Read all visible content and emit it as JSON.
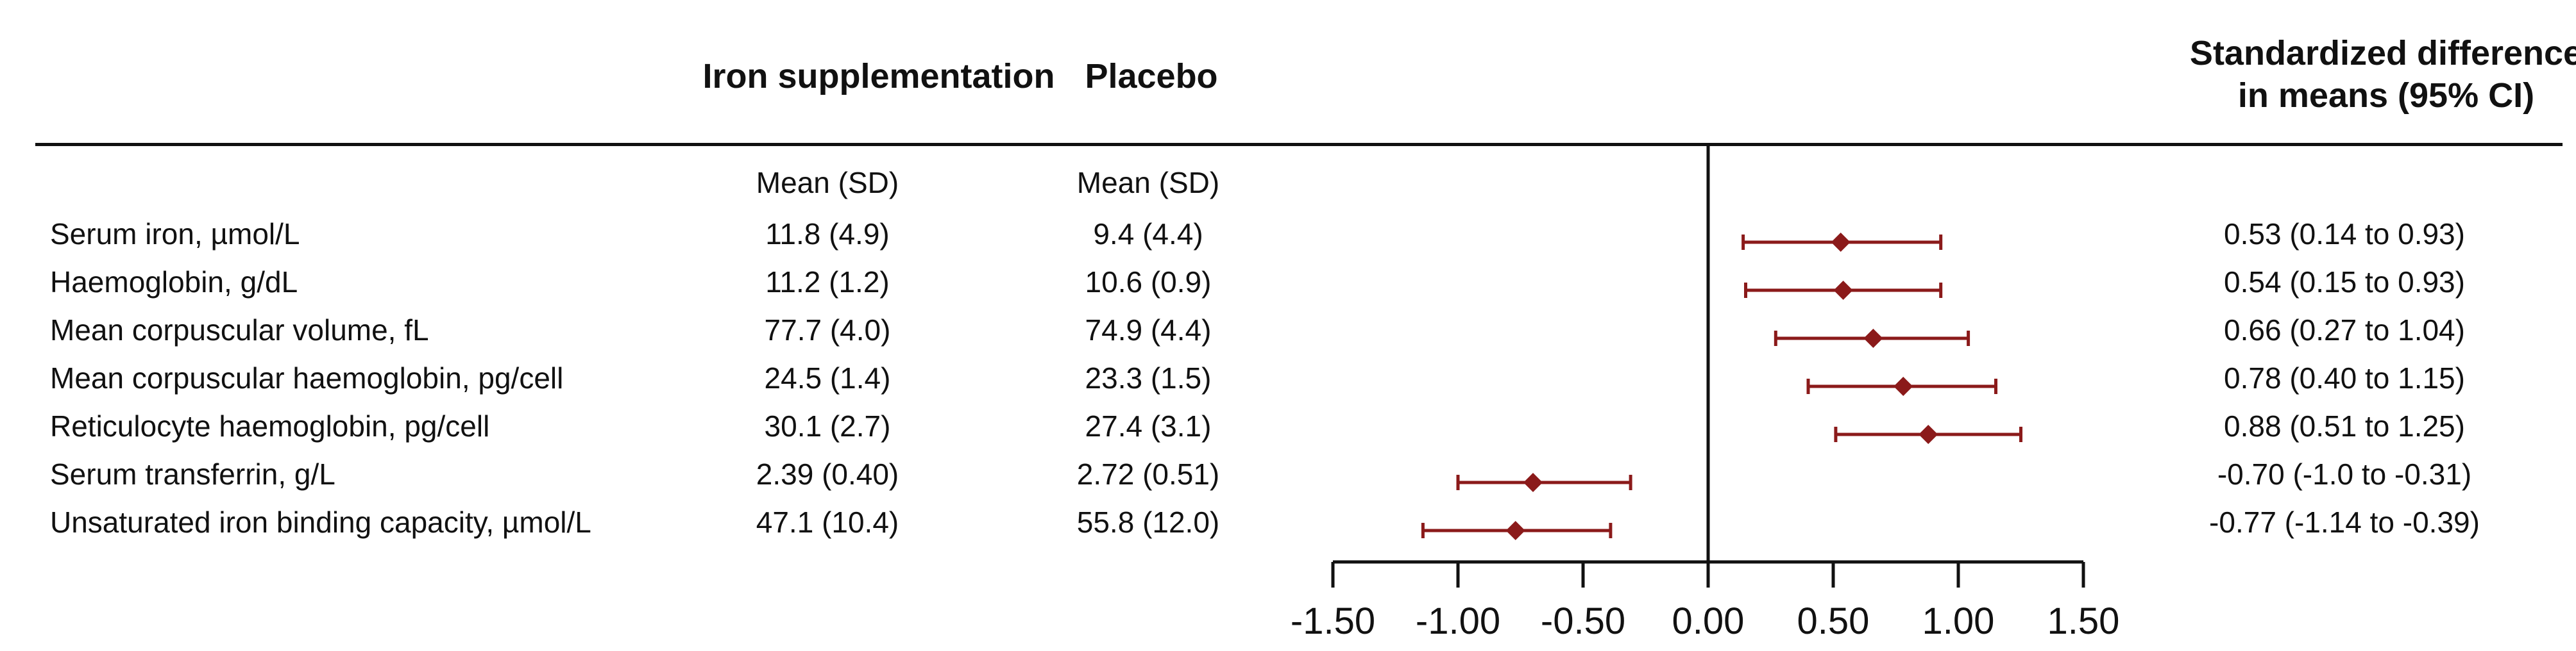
{
  "headers": {
    "iron": "Iron supplementation",
    "placebo": "Placebo",
    "smd_line1": "Standardized difference",
    "smd_line2": "in means (95% CI)"
  },
  "subheaders": {
    "iron": "Mean (SD)",
    "placebo": "Mean (SD)"
  },
  "rows": [
    {
      "label": "Serum iron, µmol/L",
      "iron": "11.8 (4.9)",
      "placebo": "9.4 (4.4)",
      "ci_text": "0.53 (0.14 to 0.93)"
    },
    {
      "label": "Haemoglobin, g/dL",
      "iron": "11.2 (1.2)",
      "placebo": "10.6 (0.9)",
      "ci_text": "0.54 (0.15 to 0.93)"
    },
    {
      "label": "Mean corpuscular volume, fL",
      "iron": "77.7 (4.0)",
      "placebo": "74.9 (4.4)",
      "ci_text": "0.66 (0.27 to 1.04)"
    },
    {
      "label": "Mean corpuscular haemoglobin, pg/cell",
      "iron": "24.5 (1.4)",
      "placebo": "23.3 (1.5)",
      "ci_text": "0.78 (0.40 to 1.15)"
    },
    {
      "label": "Reticulocyte haemoglobin, pg/cell",
      "iron": "30.1 (2.7)",
      "placebo": "27.4 (3.1)",
      "ci_text": "0.88 (0.51 to 1.25)"
    },
    {
      "label": "Serum transferrin, g/L",
      "iron": "2.39 (0.40)",
      "placebo": "2.72 (0.51)",
      "ci_text": "-0.70 (-1.0 to  -0.31)"
    },
    {
      "label": "Unsaturated iron binding capacity, µmol/L",
      "iron": "47.1 (10.4)",
      "placebo": "55.8 (12.0)",
      "ci_text": "-0.77 (-1.14 to  -0.39)"
    }
  ],
  "chart_data": {
    "type": "scatter",
    "subtype": "forest",
    "categories": [
      "Serum iron, µmol/L",
      "Haemoglobin, g/dL",
      "Mean corpuscular volume, fL",
      "Mean corpuscular haemoglobin, pg/cell",
      "Reticulocyte haemoglobin, pg/cell",
      "Serum transferrin, g/L",
      "Unsaturated iron binding capacity, µmol/L"
    ],
    "estimates": [
      0.53,
      0.54,
      0.66,
      0.78,
      0.88,
      -0.7,
      -0.77
    ],
    "ci_low": [
      0.14,
      0.15,
      0.27,
      0.4,
      0.51,
      -1.0,
      -1.14
    ],
    "ci_high": [
      0.93,
      0.93,
      1.04,
      1.15,
      1.25,
      -0.31,
      -0.39
    ],
    "xlim": [
      -1.5,
      1.5
    ],
    "xticks": [
      -1.5,
      -1.0,
      -0.5,
      0.0,
      0.5,
      1.0,
      1.5
    ],
    "xtick_labels": [
      "-1.50",
      "-1.00",
      "-0.50",
      "0.00",
      "0.50",
      "1.00",
      "1.50"
    ],
    "reference_line": 0,
    "marker_color": "#8b1a1a",
    "axis_color": "#111111",
    "grid": false
  }
}
